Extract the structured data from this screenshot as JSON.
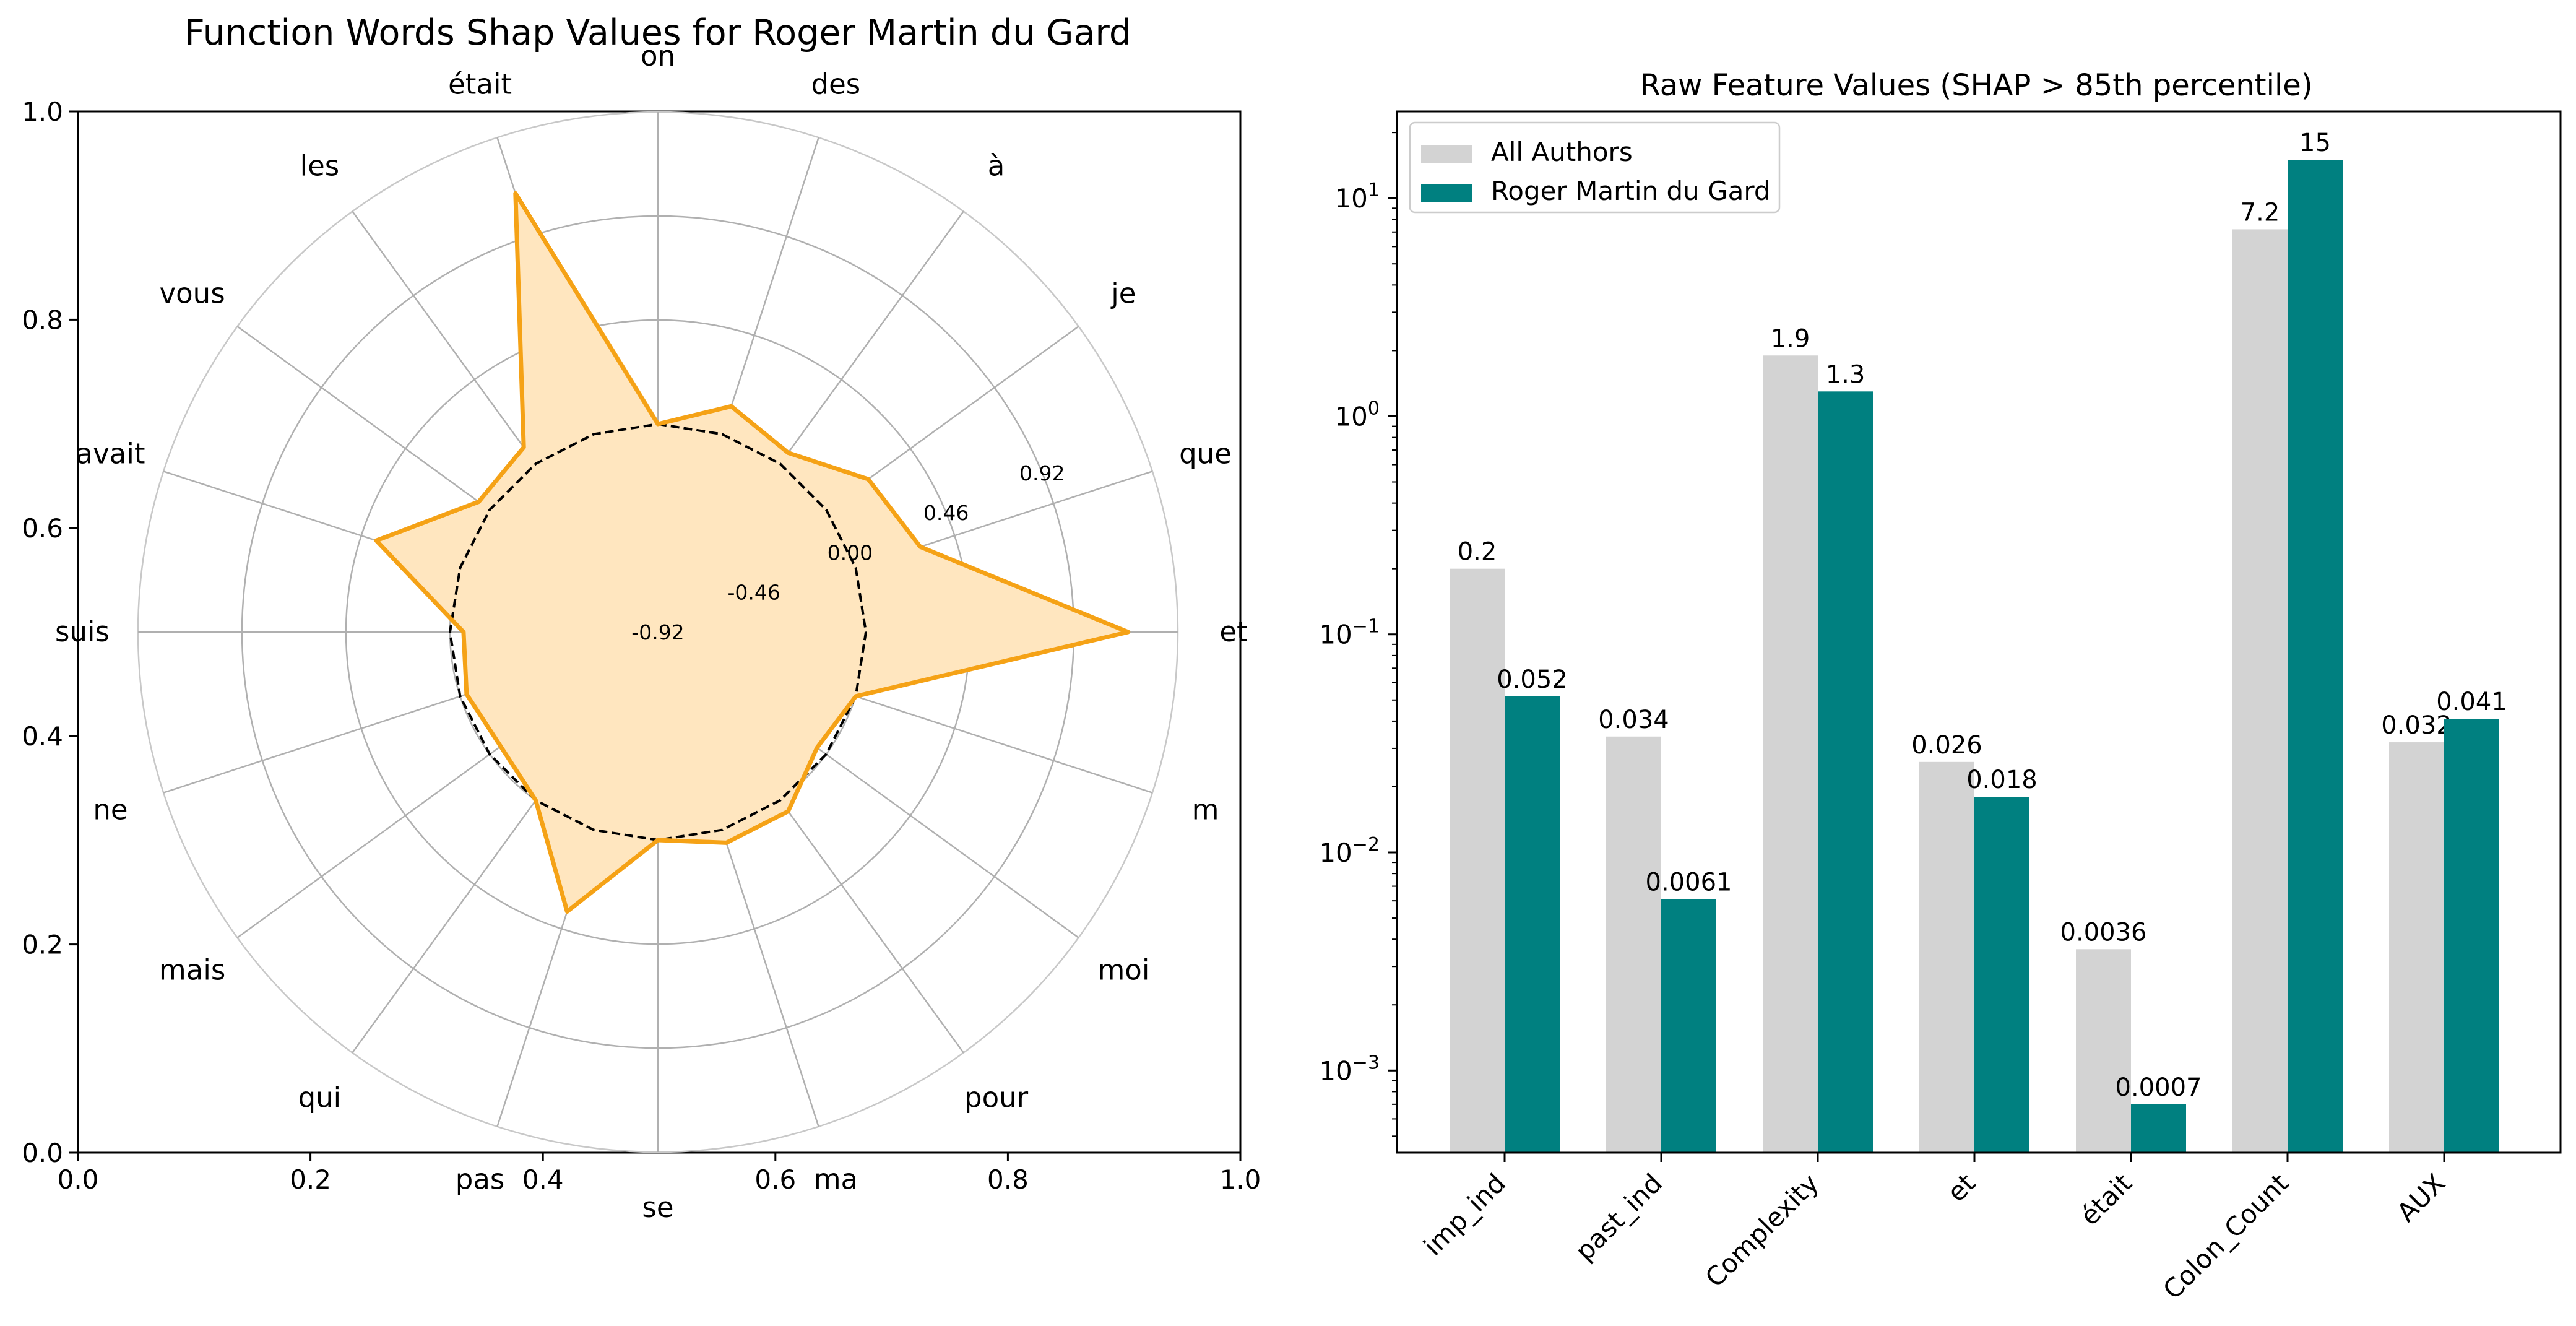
{
  "chart_data": [
    {
      "type": "radar",
      "title": "Function Words Shap Values for Roger Martin du Gard",
      "axes": [
        "on",
        "des",
        "à",
        "je",
        "que",
        "et",
        "m",
        "moi",
        "pour",
        "ma",
        "se",
        "pas",
        "qui",
        "mais",
        "ne",
        "suis",
        "avait",
        "vous",
        "les",
        "était"
      ],
      "series": [
        {
          "values": [
            0.0,
            0.13,
            0.06,
            0.23,
            0.3,
            1.16,
            0.0,
            -0.05,
            0.06,
            0.06,
            0.0,
            0.38,
            0.0,
            -0.06,
            -0.03,
            -0.06,
            0.39,
            0.06,
            0.09,
            1.12
          ]
        },
        {
          "values": [
            0,
            0,
            0,
            0,
            0,
            0,
            0,
            0,
            0,
            0,
            0,
            0,
            0,
            0,
            0,
            0,
            0,
            0,
            0,
            0
          ]
        }
      ],
      "radial_ticks": [
        "-0.92",
        "-0.46",
        "0.00",
        "0.46",
        "0.92"
      ],
      "radial_range": [
        -0.92,
        1.38
      ],
      "frame_axis": {
        "xticks": [
          "0.0",
          "0.2",
          "0.4",
          "0.6",
          "0.8",
          "1.0"
        ],
        "yticks": [
          "0.0",
          "0.2",
          "0.4",
          "0.6",
          "0.8",
          "1.0"
        ]
      },
      "colors": {
        "fill": "#ffe6bf",
        "line": "#f5a216",
        "baseline": "#000000"
      }
    },
    {
      "type": "bar",
      "title": "Raw Feature Values (SHAP > 85th percentile)",
      "categories": [
        "imp_ind",
        "past_ind",
        "Complexity",
        "et",
        "était",
        "Colon_Count",
        "AUX"
      ],
      "series": [
        {
          "name": "All Authors",
          "values": [
            0.2,
            0.034,
            1.9,
            0.026,
            0.0036,
            7.2,
            0.032
          ],
          "labels": [
            "0.2",
            "0.034",
            "1.9",
            "0.026",
            "0.0036",
            "7.2",
            "0.032"
          ],
          "color": "#d3d3d3"
        },
        {
          "name": "Roger Martin du Gard",
          "values": [
            0.052,
            0.0061,
            1.3,
            0.018,
            0.0007,
            15,
            0.041
          ],
          "labels": [
            "0.052",
            "0.0061",
            "1.3",
            "0.018",
            "0.0007",
            "15",
            "0.041"
          ],
          "color": "#008080"
        }
      ],
      "yscale": "log",
      "ylim": [
        0.00042,
        25
      ],
      "yticks": [
        {
          "value": 0.001,
          "base": "10",
          "exp": "−3"
        },
        {
          "value": 0.01,
          "base": "10",
          "exp": "−2"
        },
        {
          "value": 0.1,
          "base": "10",
          "exp": "−1"
        },
        {
          "value": 1,
          "base": "10",
          "exp": "0"
        },
        {
          "value": 10,
          "base": "10",
          "exp": "1"
        }
      ],
      "legend_position": "top-left"
    }
  ]
}
